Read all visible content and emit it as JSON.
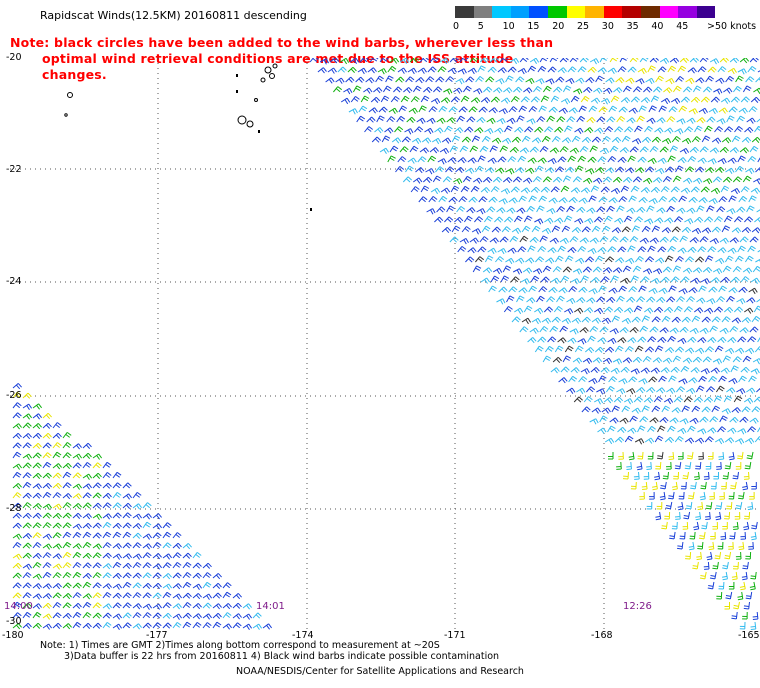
{
  "title": "Rapidscat Winds(12.5KM) 20160811 descending",
  "note": {
    "line1": "Note: black circles have been added to the wind barbs, wherever less than",
    "line2": "optimal wind retrieval conditions are met due to the ISS attitude changes."
  },
  "colorbar": {
    "unit": ">50 knots",
    "labels": [
      "0",
      "5",
      "10",
      "15",
      "20",
      "25",
      "30",
      "35",
      "40",
      "45"
    ],
    "colors": [
      "#3a3a3a",
      "#7f7f7f",
      "#00c8ff",
      "#00a0ff",
      "#0050ff",
      "#00c800",
      "#ffff00",
      "#ffb400",
      "#ff0000",
      "#b40000",
      "#6e2a00",
      "#ff00ff",
      "#9600e0",
      "#3c0090"
    ]
  },
  "axes": {
    "y_ticks": [
      "-20",
      "-22",
      "-24",
      "-26",
      "-28",
      "-30"
    ],
    "x_ticks": [
      "-180",
      "-177",
      "-174",
      "-171",
      "-168",
      "-165"
    ],
    "lat_range": [
      -30,
      -20
    ],
    "lon_range": [
      -180,
      -165
    ]
  },
  "swath_times": [
    "14:00",
    "14:01",
    "12:26"
  ],
  "footer": {
    "line1": "Note: 1) Times are GMT 2)Times along bottom correspond to measurement at ~20S",
    "line2": "3)Data buffer is 22 hrs from 20160811 4) Black wind barbs indicate possible contamination",
    "credit": "NOAA/NESDIS/Center for Satellite Applications and Research"
  }
}
